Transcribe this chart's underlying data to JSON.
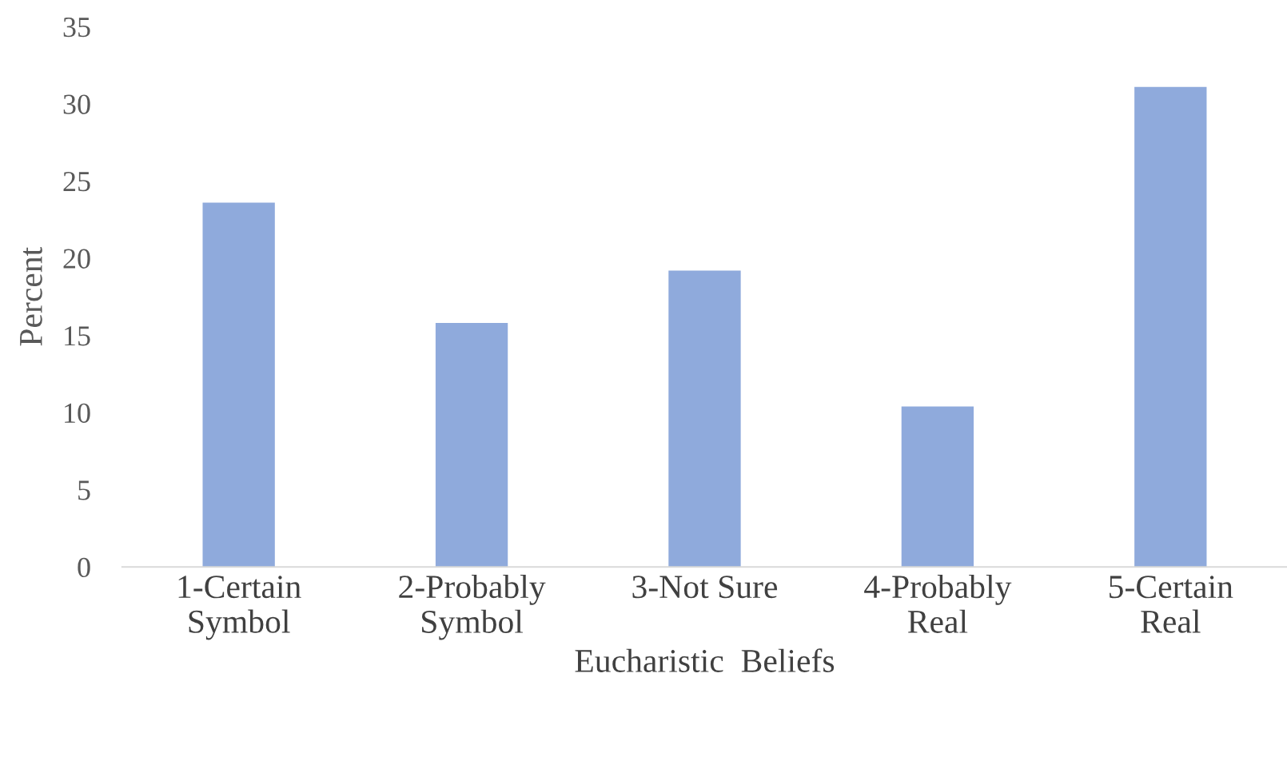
{
  "chart_data": {
    "type": "bar",
    "xlabel": "Eucharistic  Beliefs",
    "ylabel": "Percent",
    "categories": [
      "1-Certain\nSymbol",
      "2-Probably\nSymbol",
      "3-Not Sure",
      "4-Probably\nReal",
      "5-Certain\nReal"
    ],
    "values": [
      23.6,
      15.8,
      19.2,
      10.4,
      31.1
    ],
    "color": "#8faadc",
    "ylim": [
      0,
      35
    ],
    "yticks": [
      0,
      5,
      10,
      15,
      20,
      25,
      30,
      35
    ],
    "grid": false
  }
}
